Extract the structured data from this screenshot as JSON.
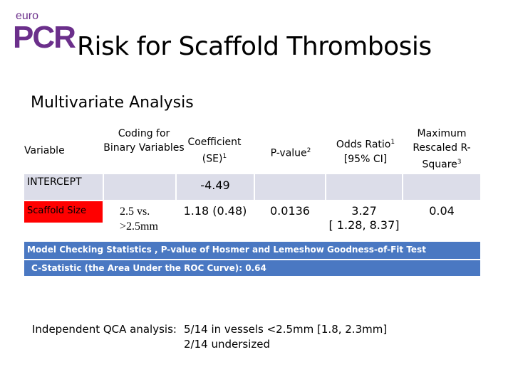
{
  "logo": {
    "top": "euro",
    "main": "PCR"
  },
  "title": "Risk for Scaffold Thrombosis",
  "subtitle": "Multivariate Analysis",
  "table": {
    "headers": {
      "variable": "Variable",
      "coding": "Coding for Binary Variables",
      "coef": "Coefficient (SE)",
      "coef_sup": "1",
      "pvalue": "P-value",
      "pvalue_sup": "2",
      "odds": "Odds Ratio",
      "odds_sup": "1",
      "odds_ci": "[95% CI]",
      "maxr2": "Maximum Rescaled R-Square",
      "maxr2_sup": "3"
    },
    "intercept": {
      "label": "INTERCEPT",
      "coef": "-4.49"
    },
    "scaffold": {
      "label": "Scaffold Size",
      "coding_line1": "2.5 vs.",
      "coding_line2": ">2.5mm",
      "coef": "1.18 (0.48)",
      "pvalue": "0.0136",
      "odds": "3.27",
      "odds_ci": "[ 1.28, 8.37]",
      "maxr2": "0.04"
    },
    "model_checking": "Model Checking Statistics , P-value of Hosmer and Lemeshow Goodness-of-Fit Test",
    "c_statistic": "C-Statistic (the Area Under the ROC Curve): 0.64"
  },
  "qca": {
    "label": "Independent QCA analysis:",
    "line1": "5/14 in vessels <2.5mm [1.8, 2.3mm]",
    "line2": "2/14 undersized"
  },
  "colors": {
    "brand": "#6b2f8b",
    "blue_row": "#4a78c2",
    "grey_row": "#dcdde9",
    "red_cell": "#ff0000"
  }
}
